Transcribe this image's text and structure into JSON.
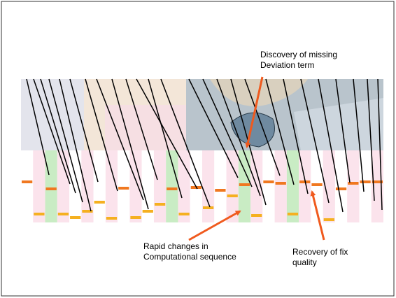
{
  "annotations": [
    {
      "lines": [
        "Discovery of missing",
        "Deviation term"
      ]
    },
    {
      "lines": [
        "Rapid changes in",
        "Computational sequence"
      ]
    },
    {
      "lines": [
        "Recovery of fix",
        "quality"
      ]
    }
  ]
}
